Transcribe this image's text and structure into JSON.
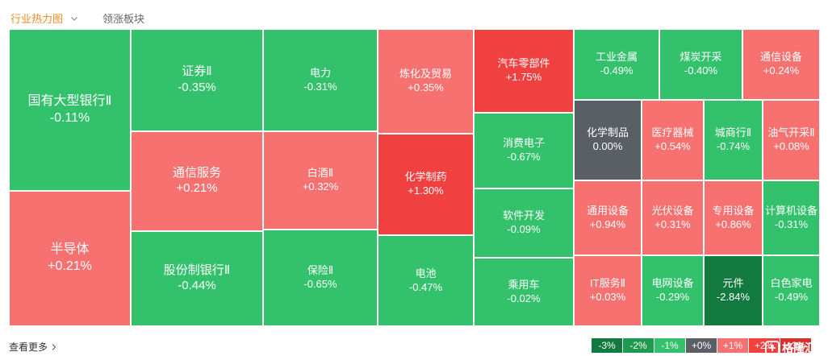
{
  "header": {
    "active_tab": "行业热力图",
    "other_tab": "领涨板块"
  },
  "footer": {
    "more_link": "查看更多"
  },
  "watermark": "格隆汇",
  "colors": {
    "up_strong": "#f04040",
    "up": "#f87171",
    "down": "#33c26b",
    "down_strong": "#127a3e",
    "flat": "#5a5f66",
    "accent": "#f28b21"
  },
  "legend": [
    "-3%",
    "-2%",
    "-1%",
    "+0%",
    "+1%",
    "+2%",
    "+3%"
  ],
  "chart_data": {
    "type": "treemap",
    "title": "",
    "tiles": [
      {
        "name": "国有大型银行Ⅱ",
        "change": "-0.11%",
        "value": -0.11
      },
      {
        "name": "半导体",
        "change": "+0.21%",
        "value": 0.21
      },
      {
        "name": "证券Ⅱ",
        "change": "-0.35%",
        "value": -0.35
      },
      {
        "name": "通信服务",
        "change": "+0.21%",
        "value": 0.21
      },
      {
        "name": "股份制银行Ⅱ",
        "change": "-0.44%",
        "value": -0.44
      },
      {
        "name": "电力",
        "change": "-0.31%",
        "value": -0.31
      },
      {
        "name": "白酒Ⅱ",
        "change": "+0.32%",
        "value": 0.32
      },
      {
        "name": "保险Ⅱ",
        "change": "-0.65%",
        "value": -0.65
      },
      {
        "name": "炼化及贸易",
        "change": "+0.35%",
        "value": 0.35
      },
      {
        "name": "化学制药",
        "change": "+1.30%",
        "value": 1.3
      },
      {
        "name": "电池",
        "change": "-0.47%",
        "value": -0.47
      },
      {
        "name": "汽车零部件",
        "change": "+1.75%",
        "value": 1.75
      },
      {
        "name": "消费电子",
        "change": "-0.67%",
        "value": -0.67
      },
      {
        "name": "软件开发",
        "change": "-0.09%",
        "value": -0.09
      },
      {
        "name": "乘用车",
        "change": "-0.02%",
        "value": -0.02
      },
      {
        "name": "工业金属",
        "change": "-0.49%",
        "value": -0.49
      },
      {
        "name": "煤炭开采",
        "change": "-0.40%",
        "value": -0.4
      },
      {
        "name": "通信设备",
        "change": "+0.24%",
        "value": 0.24
      },
      {
        "name": "化学制品",
        "change": "0.00%",
        "value": 0.0
      },
      {
        "name": "医疗器械",
        "change": "+0.54%",
        "value": 0.54
      },
      {
        "name": "城商行Ⅱ",
        "change": "-0.74%",
        "value": -0.74
      },
      {
        "name": "油气开采Ⅱ",
        "change": "+0.08%",
        "value": 0.08
      },
      {
        "name": "通用设备",
        "change": "+0.94%",
        "value": 0.94
      },
      {
        "name": "光伏设备",
        "change": "+0.31%",
        "value": 0.31
      },
      {
        "name": "专用设备",
        "change": "+0.86%",
        "value": 0.86
      },
      {
        "name": "计算机设备",
        "change": "-0.31%",
        "value": -0.31
      },
      {
        "name": "IT服务Ⅱ",
        "change": "+0.03%",
        "value": 0.03
      },
      {
        "name": "电网设备",
        "change": "-0.29%",
        "value": -0.29
      },
      {
        "name": "元件",
        "change": "-2.84%",
        "value": -2.84
      },
      {
        "name": "白色家电",
        "change": "-0.49%",
        "value": -0.49
      }
    ]
  }
}
